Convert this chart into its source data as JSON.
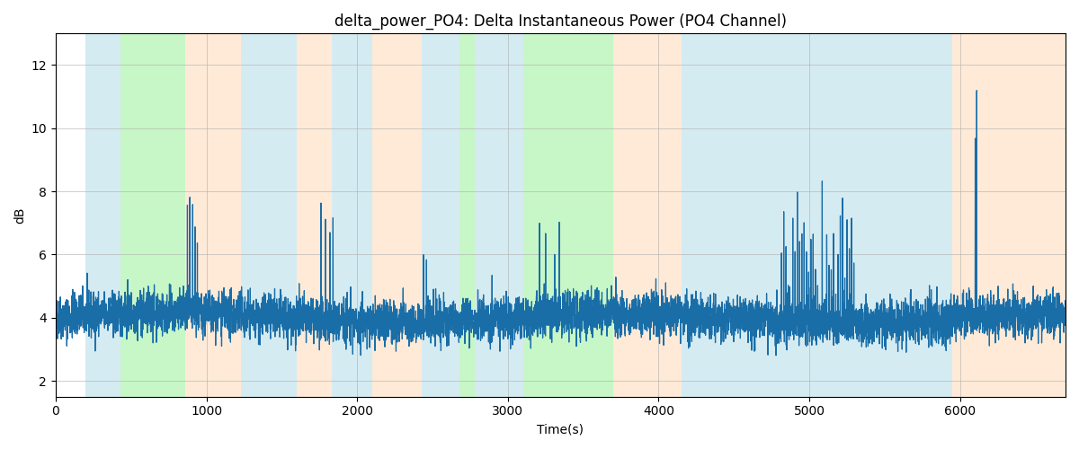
{
  "title": "delta_power_PO4: Delta Instantaneous Power (PO4 Channel)",
  "xlabel": "Time(s)",
  "ylabel": "dB",
  "ylim": [
    1.5,
    13.0
  ],
  "xlim": [
    0,
    6700
  ],
  "seed": 42,
  "n_points": 6700,
  "time_end": 6700,
  "line_color": "#1a6ea8",
  "line_width": 0.9,
  "background_regions": [
    {
      "xmin": 200,
      "xmax": 430,
      "color": "#add8e6",
      "alpha": 0.5
    },
    {
      "xmin": 430,
      "xmax": 860,
      "color": "#90ee90",
      "alpha": 0.5
    },
    {
      "xmin": 860,
      "xmax": 1230,
      "color": "#ffdab9",
      "alpha": 0.55
    },
    {
      "xmin": 1230,
      "xmax": 1600,
      "color": "#add8e6",
      "alpha": 0.5
    },
    {
      "xmin": 1600,
      "xmax": 1830,
      "color": "#ffdab9",
      "alpha": 0.55
    },
    {
      "xmin": 1830,
      "xmax": 2100,
      "color": "#add8e6",
      "alpha": 0.5
    },
    {
      "xmin": 2100,
      "xmax": 2430,
      "color": "#ffdab9",
      "alpha": 0.55
    },
    {
      "xmin": 2430,
      "xmax": 2680,
      "color": "#add8e6",
      "alpha": 0.5
    },
    {
      "xmin": 2680,
      "xmax": 2780,
      "color": "#90ee90",
      "alpha": 0.5
    },
    {
      "xmin": 2780,
      "xmax": 3100,
      "color": "#add8e6",
      "alpha": 0.5
    },
    {
      "xmin": 3100,
      "xmax": 3700,
      "color": "#90ee90",
      "alpha": 0.5
    },
    {
      "xmin": 3700,
      "xmax": 4150,
      "color": "#ffdab9",
      "alpha": 0.55
    },
    {
      "xmin": 4150,
      "xmax": 4650,
      "color": "#add8e6",
      "alpha": 0.5
    },
    {
      "xmin": 4650,
      "xmax": 5950,
      "color": "#add8e6",
      "alpha": 0.5
    },
    {
      "xmin": 5950,
      "xmax": 6700,
      "color": "#ffdab9",
      "alpha": 0.55
    }
  ],
  "yticks": [
    2,
    4,
    6,
    8,
    10,
    12
  ],
  "grid_color": "#b0b0b0",
  "grid_alpha": 0.6,
  "grid_linewidth": 0.7,
  "title_fontsize": 12
}
